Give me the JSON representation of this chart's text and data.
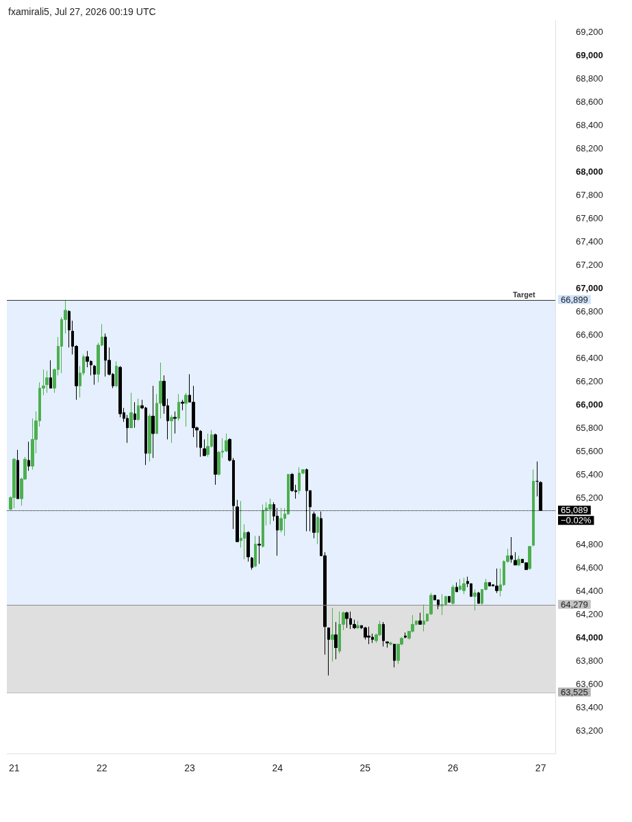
{
  "chart_data": {
    "type": "candlestick",
    "annotations": [
      "fxamirali5, Jul 27, 2026 00:19 UTC",
      {
        "text": "Target",
        "x": "2026-07-26T16:00",
        "y": 66899
      },
      {
        "text": "−0.02%",
        "x": "2026-07-27T00:00",
        "y": 65089
      }
    ],
    "xlim": [
      "2026-07-20T22:00",
      "2026-07-27T04:00"
    ],
    "xticks": [
      {
        "value": "2026-07-21",
        "label": "21"
      },
      {
        "value": "2026-07-22",
        "label": "22"
      },
      {
        "value": "2026-07-23",
        "label": "23"
      },
      {
        "value": "2026-07-24",
        "label": "24"
      },
      {
        "value": "2026-07-25",
        "label": "25"
      },
      {
        "value": "2026-07-26",
        "label": "26"
      },
      {
        "value": "2026-07-27",
        "label": "27"
      }
    ],
    "ylim": [
      63000,
      69300
    ],
    "yticks": [
      {
        "value": 63200,
        "label": "63,200"
      },
      {
        "value": 63400,
        "label": "63,400"
      },
      {
        "value": 63600,
        "label": "63,600"
      },
      {
        "value": 63800,
        "label": "63,800"
      },
      {
        "value": 64000,
        "label": "64,000"
      },
      {
        "value": 64200,
        "label": "64,200"
      },
      {
        "value": 64400,
        "label": "64,400"
      },
      {
        "value": 64600,
        "label": "64,600"
      },
      {
        "value": 64800,
        "label": "64,800"
      },
      {
        "value": 65200,
        "label": "65,200"
      },
      {
        "value": 65400,
        "label": "65,400"
      },
      {
        "value": 65600,
        "label": "65,600"
      },
      {
        "value": 65800,
        "label": "65,800"
      },
      {
        "value": 66000,
        "label": "66,000"
      },
      {
        "value": 66200,
        "label": "66,200"
      },
      {
        "value": 66400,
        "label": "66,400"
      },
      {
        "value": 66600,
        "label": "66,600"
      },
      {
        "value": 66800,
        "label": "66,800"
      },
      {
        "value": 67000,
        "label": "67,000"
      },
      {
        "value": 67200,
        "label": "67,200"
      },
      {
        "value": 67400,
        "label": "67,400"
      },
      {
        "value": 67600,
        "label": "67,600"
      },
      {
        "value": 67800,
        "label": "67,800"
      },
      {
        "value": 68000,
        "label": "68,000"
      },
      {
        "value": 68200,
        "label": "68,200"
      },
      {
        "value": 68400,
        "label": "68,400"
      },
      {
        "value": 68600,
        "label": "68,600"
      },
      {
        "value": 68800,
        "label": "68,800"
      },
      {
        "value": 69000,
        "label": "69,000"
      },
      {
        "value": 69200,
        "label": "69,200"
      }
    ],
    "ref_lines": [
      {
        "axis": "y",
        "value": 66899,
        "label": "66,899",
        "color": "#333333",
        "line_style": "solid"
      },
      {
        "axis": "y",
        "value": 65089,
        "label": "65,089",
        "color": "#000000",
        "line_style": "dotted"
      },
      {
        "axis": "y",
        "value": 64279,
        "label": "64,279",
        "color": "#8c8c8c",
        "line_style": "solid"
      },
      {
        "axis": "y",
        "value": 63525,
        "label": "63,525",
        "color": "#b5b5b5",
        "line_style": "solid"
      }
    ],
    "bands": [
      {
        "axis": "y",
        "from": 64279,
        "to": 66899,
        "color": "#cfe2fb"
      },
      {
        "axis": "y",
        "from": 63525,
        "to": 64279,
        "color": "#c4c4c4"
      }
    ],
    "series": [
      {
        "color": "#4caf50",
        "x": [
          "2026-07-20T23:00",
          "2026-07-21T00:00",
          "2026-07-21T02:00",
          "2026-07-21T03:00",
          "2026-07-21T05:00",
          "2026-07-21T06:00",
          "2026-07-21T07:00",
          "2026-07-21T08:00",
          "2026-07-21T09:00",
          "2026-07-21T11:00",
          "2026-07-21T12:00",
          "2026-07-21T13:00",
          "2026-07-21T14:00",
          "2026-07-21T18:00",
          "2026-07-21T19:00",
          "2026-07-21T23:00",
          "2026-07-22T00:00",
          "2026-07-22T04:00",
          "2026-07-22T08:00",
          "2026-07-22T10:00",
          "2026-07-22T13:00",
          "2026-07-22T15:00",
          "2026-07-22T16:00",
          "2026-07-22T19:00",
          "2026-07-22T21:00",
          "2026-07-22T23:00",
          "2026-07-23T05:00",
          "2026-07-23T06:00",
          "2026-07-23T08:00",
          "2026-07-23T09:00",
          "2026-07-23T10:00",
          "2026-07-23T14:00",
          "2026-07-23T15:00",
          "2026-07-23T18:00",
          "2026-07-23T20:00",
          "2026-07-23T21:00",
          "2026-07-23T22:00",
          "2026-07-24T01:00",
          "2026-07-24T02:00",
          "2026-07-24T03:00",
          "2026-07-24T06:00",
          "2026-07-24T07:00",
          "2026-07-24T11:00",
          "2026-07-24T15:00",
          "2026-07-24T17:00",
          "2026-07-24T18:00",
          "2026-07-24T22:00",
          "2026-07-25T03:00",
          "2026-07-25T04:00",
          "2026-07-25T07:00",
          "2026-07-25T09:00",
          "2026-07-25T10:00",
          "2026-07-25T12:00",
          "2026-07-25T13:00",
          "2026-07-25T14:00",
          "2026-07-25T16:00",
          "2026-07-25T17:00",
          "2026-07-25T18:00",
          "2026-07-25T21:00",
          "2026-07-25T22:00",
          "2026-07-26T00:00",
          "2026-07-26T02:00",
          "2026-07-26T03:00",
          "2026-07-26T06:00",
          "2026-07-26T08:00",
          "2026-07-26T09:00",
          "2026-07-26T13:00",
          "2026-07-26T14:00",
          "2026-07-26T15:00",
          "2026-07-26T18:00",
          "2026-07-26T21:00",
          "2026-07-26T22:00"
        ],
        "ohlc": [
          [
            65100,
            65210,
            65090,
            65200
          ],
          [
            65200,
            65540,
            65110,
            65530
          ],
          [
            65190,
            65370,
            65130,
            65360
          ],
          [
            65360,
            65550,
            65350,
            65530
          ],
          [
            65470,
            65880,
            65440,
            65700
          ],
          [
            65700,
            65940,
            65580,
            65860
          ],
          [
            65860,
            66190,
            65810,
            66140
          ],
          [
            66140,
            66300,
            66080,
            66160
          ],
          [
            66170,
            66290,
            66100,
            66230
          ],
          [
            66140,
            66310,
            66100,
            66300
          ],
          [
            66300,
            66580,
            66250,
            66500
          ],
          [
            66500,
            66750,
            66270,
            66730
          ],
          [
            66730,
            66899,
            66610,
            66810
          ],
          [
            66160,
            66330,
            66060,
            66270
          ],
          [
            66270,
            66430,
            66250,
            66410
          ],
          [
            66260,
            66530,
            66190,
            66510
          ],
          [
            66510,
            66690,
            66500,
            66580
          ],
          [
            66160,
            66370,
            66150,
            66330
          ],
          [
            65800,
            66100,
            65800,
            65930
          ],
          [
            65870,
            66050,
            65860,
            65990
          ],
          [
            65580,
            65920,
            65510,
            65900
          ],
          [
            65750,
            66090,
            65750,
            66010
          ],
          [
            66010,
            66360,
            65880,
            66200
          ],
          [
            65860,
            65910,
            65670,
            65890
          ],
          [
            65880,
            66090,
            65860,
            66020
          ],
          [
            66010,
            66100,
            65810,
            66080
          ],
          [
            65570,
            65750,
            65550,
            65640
          ],
          [
            65640,
            65780,
            65630,
            65740
          ],
          [
            65400,
            65600,
            65390,
            65590
          ],
          [
            65590,
            65710,
            65540,
            65600
          ],
          [
            65600,
            65750,
            65590,
            65690
          ],
          [
            64830,
            65170,
            64770,
            64850
          ],
          [
            64850,
            64970,
            64670,
            64900
          ],
          [
            64610,
            64870,
            64600,
            64800
          ],
          [
            64780,
            65140,
            64770,
            65090
          ],
          [
            65090,
            65160,
            64960,
            65110
          ],
          [
            65100,
            65190,
            64970,
            65140
          ],
          [
            64920,
            65110,
            64900,
            65020
          ],
          [
            65020,
            65110,
            64870,
            65060
          ],
          [
            65060,
            65400,
            65050,
            65400
          ],
          [
            65260,
            65460,
            65230,
            65410
          ],
          [
            65410,
            65440,
            65400,
            65440
          ],
          [
            64900,
            65040,
            64800,
            65030
          ],
          [
            63980,
            64250,
            63790,
            64020
          ],
          [
            63880,
            64220,
            63860,
            64110
          ],
          [
            64110,
            64220,
            64060,
            64210
          ],
          [
            64080,
            64140,
            64070,
            64100
          ],
          [
            63970,
            64030,
            63950,
            64020
          ],
          [
            64020,
            64140,
            64010,
            64110
          ],
          [
            63940,
            63960,
            63930,
            63950
          ],
          [
            63800,
            63940,
            63770,
            63940
          ],
          [
            63940,
            64000,
            63930,
            63990
          ],
          [
            63990,
            64050,
            63980,
            64050
          ],
          [
            64050,
            64190,
            64040,
            64110
          ],
          [
            64110,
            64140,
            64100,
            64140
          ],
          [
            64110,
            64280,
            64050,
            64140
          ],
          [
            64140,
            64200,
            64130,
            64200
          ],
          [
            64200,
            64380,
            64190,
            64360
          ],
          [
            64270,
            64370,
            64190,
            64280
          ],
          [
            64280,
            64350,
            64270,
            64350
          ],
          [
            64290,
            64450,
            64280,
            64430
          ],
          [
            64410,
            64500,
            64400,
            64440
          ],
          [
            64400,
            64510,
            64370,
            64460
          ],
          [
            64350,
            64410,
            64230,
            64380
          ],
          [
            64290,
            64410,
            64280,
            64410
          ],
          [
            64410,
            64500,
            64400,
            64470
          ],
          [
            64400,
            64590,
            64350,
            64450
          ],
          [
            64450,
            64660,
            64440,
            64650
          ],
          [
            64650,
            64760,
            64640,
            64700
          ],
          [
            64620,
            64700,
            64610,
            64670
          ],
          [
            64590,
            64780,
            64580,
            64780
          ],
          [
            64790,
            65440,
            64780,
            65340
          ]
        ]
      },
      {
        "color": "#000000",
        "x": [
          "2026-07-21T01:00",
          "2026-07-21T04:00",
          "2026-07-21T10:00",
          "2026-07-21T15:00",
          "2026-07-21T16:00",
          "2026-07-21T17:00",
          "2026-07-21T20:00",
          "2026-07-21T21:00",
          "2026-07-21T22:00",
          "2026-07-22T01:00",
          "2026-07-22T02:00",
          "2026-07-22T03:00",
          "2026-07-22T05:00",
          "2026-07-22T06:00",
          "2026-07-22T07:00",
          "2026-07-22T09:00",
          "2026-07-22T11:00",
          "2026-07-22T12:00",
          "2026-07-22T14:00",
          "2026-07-22T17:00",
          "2026-07-22T18:00",
          "2026-07-22T20:00",
          "2026-07-22T22:00",
          "2026-07-23T00:00",
          "2026-07-23T01:00",
          "2026-07-23T02:00",
          "2026-07-23T03:00",
          "2026-07-23T04:00",
          "2026-07-23T07:00",
          "2026-07-23T11:00",
          "2026-07-23T12:00",
          "2026-07-23T13:00",
          "2026-07-23T16:00",
          "2026-07-23T17:00",
          "2026-07-23T19:00",
          "2026-07-23T23:00",
          "2026-07-24T00:00",
          "2026-07-24T04:00",
          "2026-07-24T05:00",
          "2026-07-24T08:00",
          "2026-07-24T09:00",
          "2026-07-24T10:00",
          "2026-07-24T12:00",
          "2026-07-24T13:00",
          "2026-07-24T14:00",
          "2026-07-24T16:00",
          "2026-07-24T19:00",
          "2026-07-24T20:00",
          "2026-07-24T21:00",
          "2026-07-24T23:00",
          "2026-07-25T00:00",
          "2026-07-25T01:00",
          "2026-07-25T02:00",
          "2026-07-25T05:00",
          "2026-07-25T06:00",
          "2026-07-25T08:00",
          "2026-07-25T11:00",
          "2026-07-25T15:00",
          "2026-07-25T19:00",
          "2026-07-25T20:00",
          "2026-07-25T23:00",
          "2026-07-26T01:00",
          "2026-07-26T04:00",
          "2026-07-26T05:00",
          "2026-07-26T07:00",
          "2026-07-26T10:00",
          "2026-07-26T11:00",
          "2026-07-26T12:00",
          "2026-07-26T16:00",
          "2026-07-26T17:00",
          "2026-07-26T19:00",
          "2026-07-26T20:00",
          "2026-07-26T23:00",
          "2026-07-27T00:00"
        ],
        "ohlc": [
          [
            65520,
            65610,
            65190,
            65190
          ],
          [
            65520,
            65680,
            65430,
            65470
          ],
          [
            66230,
            66380,
            66140,
            66140
          ],
          [
            66800,
            66810,
            66490,
            66640
          ],
          [
            66630,
            66720,
            66430,
            66500
          ],
          [
            66500,
            66510,
            66040,
            66160
          ],
          [
            66410,
            66460,
            66320,
            66370
          ],
          [
            66370,
            66380,
            66250,
            66340
          ],
          [
            66330,
            66340,
            66170,
            66260
          ],
          [
            66580,
            66610,
            66240,
            66380
          ],
          [
            66380,
            66490,
            66250,
            66260
          ],
          [
            66260,
            66270,
            66140,
            66160
          ],
          [
            66320,
            66330,
            65890,
            65920
          ],
          [
            65930,
            65970,
            65850,
            65880
          ],
          [
            65880,
            65910,
            65670,
            65800
          ],
          [
            65920,
            66020,
            65800,
            65870
          ],
          [
            65990,
            66040,
            65960,
            65970
          ],
          [
            65970,
            65980,
            65480,
            65580
          ],
          [
            65900,
            66160,
            65540,
            65750
          ],
          [
            66200,
            66250,
            65920,
            65990
          ],
          [
            65990,
            66050,
            65700,
            65860
          ],
          [
            65890,
            65940,
            65750,
            65880
          ],
          [
            66020,
            66040,
            65950,
            66010
          ],
          [
            66080,
            66260,
            66020,
            66020
          ],
          [
            66020,
            66160,
            65720,
            65800
          ],
          [
            65800,
            65810,
            65630,
            65780
          ],
          [
            65770,
            65780,
            65550,
            65630
          ],
          [
            65620,
            65700,
            65560,
            65560
          ],
          [
            65740,
            65750,
            65310,
            65400
          ],
          [
            65700,
            65710,
            65510,
            65520
          ],
          [
            65520,
            65540,
            64930,
            65130
          ],
          [
            65120,
            65180,
            64820,
            64820
          ],
          [
            64900,
            64910,
            64650,
            64690
          ],
          [
            64680,
            64690,
            64580,
            64600
          ],
          [
            64800,
            64870,
            64630,
            64790
          ],
          [
            65140,
            65160,
            65000,
            65040
          ],
          [
            65040,
            65110,
            64700,
            64920
          ],
          [
            65400,
            65410,
            65250,
            65260
          ],
          [
            65260,
            65310,
            65190,
            65250
          ],
          [
            65440,
            65450,
            64910,
            65260
          ],
          [
            65260,
            65260,
            64910,
            65120
          ],
          [
            65060,
            65080,
            64850,
            64900
          ],
          [
            65020,
            65080,
            64700,
            64700
          ],
          [
            64700,
            64730,
            63850,
            64090
          ],
          [
            64080,
            64080,
            63670,
            63980
          ],
          [
            64020,
            64130,
            63810,
            63910
          ],
          [
            64210,
            64220,
            64080,
            64160
          ],
          [
            64160,
            64220,
            64070,
            64110
          ],
          [
            64110,
            64150,
            64070,
            64080
          ],
          [
            64100,
            64100,
            64070,
            64080
          ],
          [
            64080,
            64090,
            63980,
            64000
          ],
          [
            64010,
            64090,
            63940,
            64000
          ],
          [
            64000,
            64030,
            63950,
            63980
          ],
          [
            64110,
            64130,
            63920,
            63970
          ],
          [
            63960,
            63960,
            63910,
            63950
          ],
          [
            63940,
            63940,
            63740,
            63800
          ],
          [
            64010,
            64040,
            63990,
            64000
          ],
          [
            64140,
            64210,
            64110,
            64110
          ],
          [
            64360,
            64360,
            64320,
            64320
          ],
          [
            64320,
            64320,
            64240,
            64270
          ],
          [
            64350,
            64350,
            64300,
            64300
          ],
          [
            64430,
            64470,
            64390,
            64390
          ],
          [
            64480,
            64520,
            64430,
            64460
          ],
          [
            64460,
            64460,
            64350,
            64350
          ],
          [
            64380,
            64390,
            64290,
            64290
          ],
          [
            64470,
            64470,
            64440,
            64440
          ],
          [
            64450,
            64450,
            64440,
            64440
          ],
          [
            64440,
            64590,
            64380,
            64400
          ],
          [
            64700,
            64860,
            64640,
            64670
          ],
          [
            64660,
            64730,
            64620,
            64620
          ],
          [
            64670,
            64670,
            64640,
            64640
          ],
          [
            64640,
            64640,
            64580,
            64580
          ],
          [
            65340,
            65510,
            65210,
            65340
          ],
          [
            65330,
            65340,
            65089,
            65089
          ]
        ]
      }
    ]
  }
}
